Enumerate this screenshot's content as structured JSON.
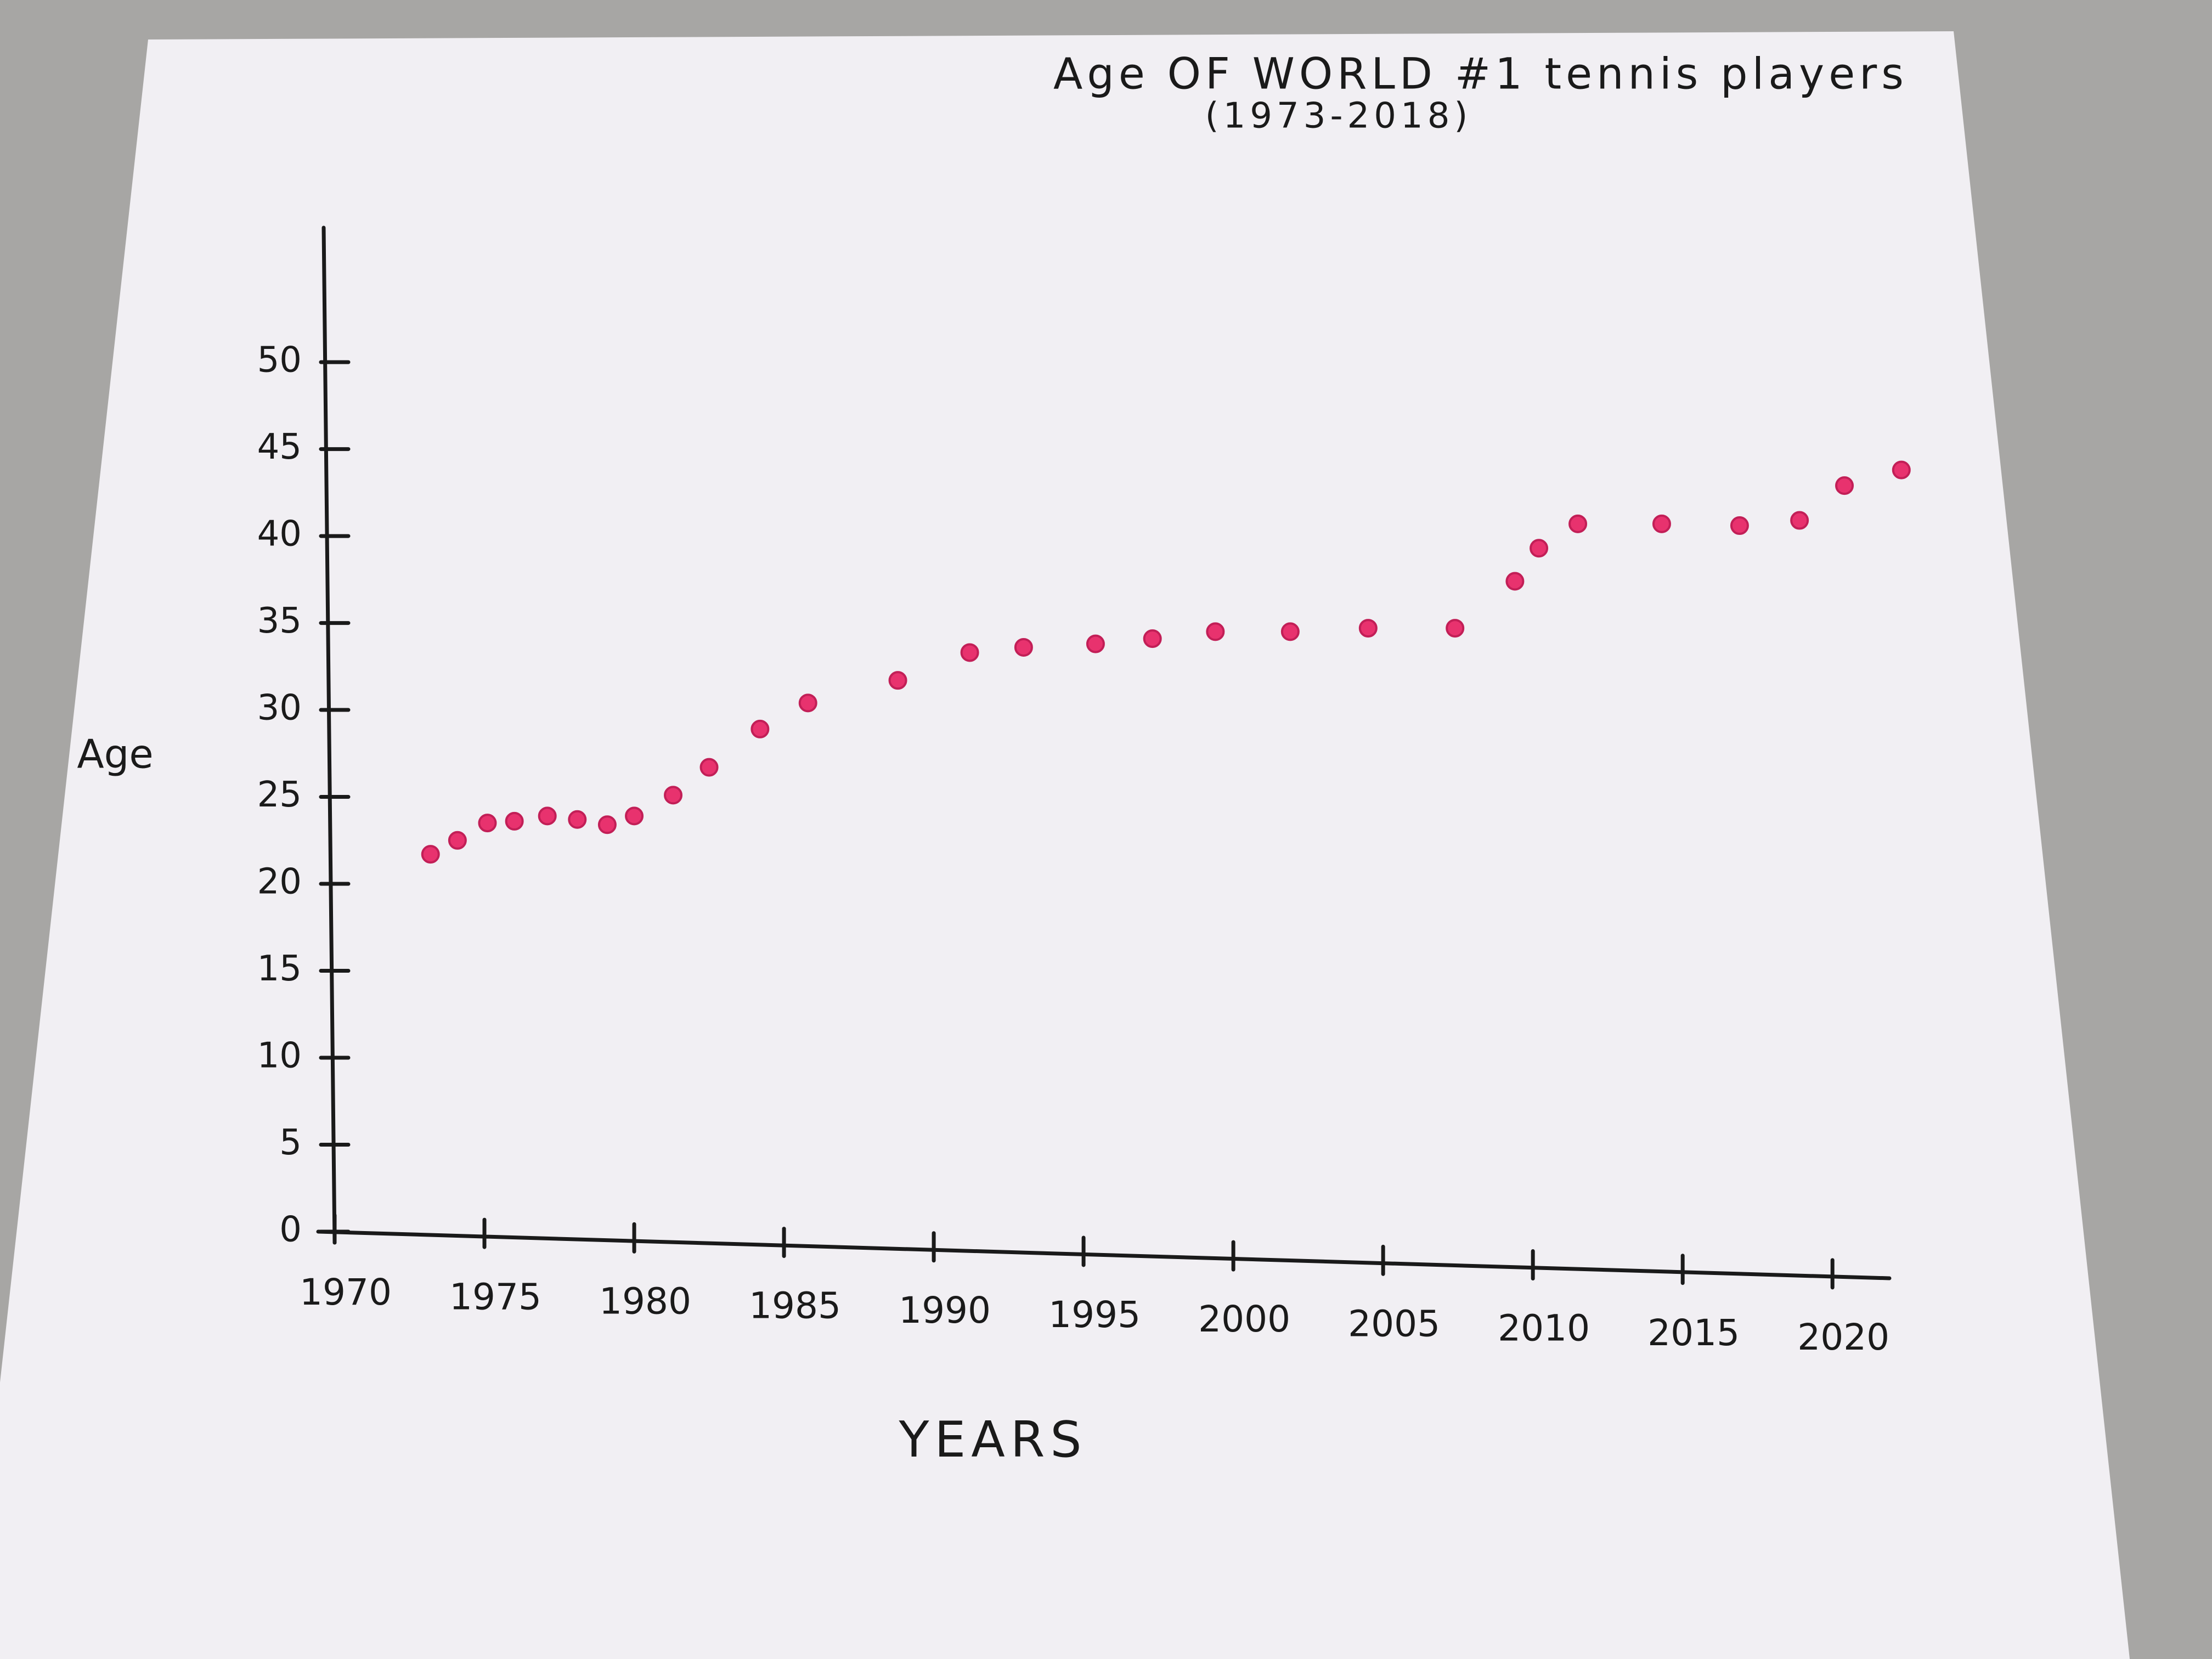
{
  "chart_data": {
    "type": "scatter",
    "title": "Age OF WORLD #1 tennis players",
    "subtitle": "(1973-2018)",
    "x_label": "YEARS",
    "y_label": "Age",
    "color": "#e8326e",
    "x": [
      1973.2,
      1974.1,
      1975.1,
      1976,
      1977.1,
      1978.1,
      1979.1,
      1980,
      1981.3,
      1982.5,
      1984.2,
      1985.8,
      1988.8,
      1991.2,
      1993,
      1995.4,
      1997.3,
      1999.4,
      2001.9,
      2004.5,
      2007.4,
      2009.4,
      2010.2,
      2011.5,
      2014.3,
      2016.9,
      2018.9,
      2020.4,
      2022.3
    ],
    "values": [
      21.7,
      22.5,
      23.5,
      23.6,
      23.9,
      23.7,
      23.4,
      23.9,
      25.1,
      26.7,
      28.9,
      30.4,
      31.7,
      33.3,
      33.6,
      33.8,
      34.1,
      34.5,
      34.5,
      34.7,
      34.7,
      37.4,
      39.3,
      40.7,
      40.7,
      40.6,
      40.9,
      42.9,
      43.8
    ],
    "xlim": [
      1970,
      2023
    ],
    "xticks": [
      1970,
      1975,
      1980,
      1985,
      1990,
      1995,
      2000,
      2005,
      2010,
      2015,
      2020
    ],
    "ylim": [
      0,
      53
    ],
    "yticks": [
      0,
      5,
      10,
      15,
      20,
      25,
      30,
      35,
      40,
      45,
      50
    ],
    "grid": false
  }
}
